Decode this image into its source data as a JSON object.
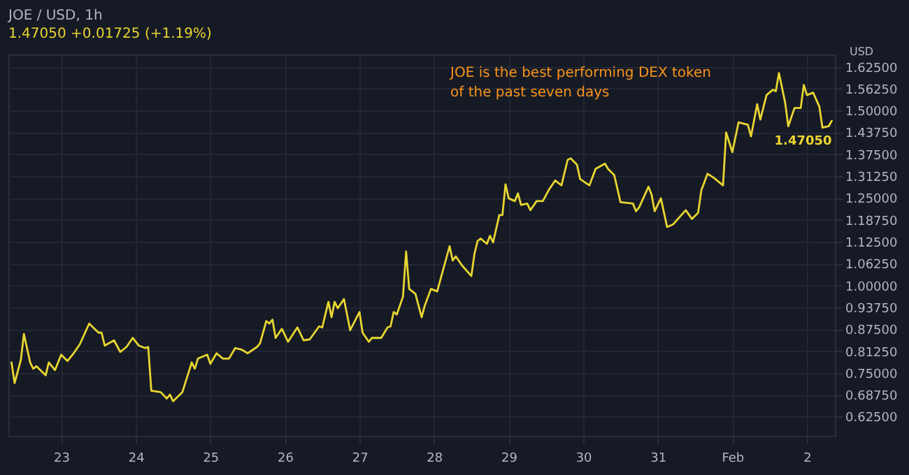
{
  "chart_data": {
    "type": "line",
    "title": "JOE / USD, 1h",
    "subtitle": "1.47050  +0.01725 (+1.19%)",
    "ylabel": "USD",
    "annotations": [
      "JOE is the best performing DEX token\nof the past seven days",
      {
        "text": "1.47050",
        "x": "--02-02T08:00",
        "y": 1.4705
      }
    ],
    "x": [
      "--01-22T08:00",
      "--01-22T09:00",
      "--01-22T11:00",
      "--01-22T12:00",
      "--01-22T14:00",
      "--01-22T15:00",
      "--01-22T16:00",
      "--01-22T19:00",
      "--01-22T20:00",
      "--01-22T22:00",
      "--01-23T00:00",
      "--01-23T02:00",
      "--01-23T04:00",
      "--01-23T06:00",
      "--01-23T09:00",
      "--01-23T12:00",
      "--01-23T13:00",
      "--01-23T14:00",
      "--01-23T17:00",
      "--01-23T19:00",
      "--01-23T21:00",
      "--01-23T23:00",
      "--01-24T01:00",
      "--01-24T03:00",
      "--01-24T04:00",
      "--01-24T05:00",
      "--01-24T08:00",
      "--01-24T10:00",
      "--01-24T11:00",
      "--01-24T12:00",
      "--01-24T15:00",
      "--01-24T18:00",
      "--01-24T19:00",
      "--01-24T20:00",
      "--01-24T23:00",
      "--01-25T00:00",
      "--01-25T02:00",
      "--01-25T04:00",
      "--01-25T06:00",
      "--01-25T08:00",
      "--01-25T10:00",
      "--01-25T12:00",
      "--01-25T15:00",
      "--01-25T16:00",
      "--01-25T18:00",
      "--01-25T19:00",
      "--01-25T20:00",
      "--01-25T21:00",
      "--01-25T23:00",
      "--01-26T01:00",
      "--01-26T04:00",
      "--01-26T06:00",
      "--01-26T08:00",
      "--01-26T11:00",
      "--01-26T12:00",
      "--01-26T14:00",
      "--01-26T15:00",
      "--01-26T16:00",
      "--01-26T17:00",
      "--01-26T19:00",
      "--01-26T21:00",
      "--01-27T00:00",
      "--01-27T01:00",
      "--01-27T03:00",
      "--01-27T04:00",
      "--01-27T07:00",
      "--01-27T09:00",
      "--01-27T10:00",
      "--01-27T11:00",
      "--01-27T12:00",
      "--01-27T14:00",
      "--01-27T15:00",
      "--01-27T16:00",
      "--01-27T18:00",
      "--01-27T20:00",
      "--01-27T21:00",
      "--01-27T23:00",
      "--01-28T01:00",
      "--01-28T05:00",
      "--01-28T06:00",
      "--01-28T07:00",
      "--01-28T09:00",
      "--01-28T12:00",
      "--01-28T13:00",
      "--01-28T14:00",
      "--01-28T15:00",
      "--01-28T17:00",
      "--01-28T18:00",
      "--01-28T19:00",
      "--01-28T21:00",
      "--01-28T22:00",
      "--01-28T23:00",
      "--01-29T00:00",
      "--01-29T02:00",
      "--01-29T03:00",
      "--01-29T04:00",
      "--01-29T06:00",
      "--01-29T07:00",
      "--01-29T09:00",
      "--01-29T11:00",
      "--01-29T13:00",
      "--01-29T15:00",
      "--01-29T17:00",
      "--01-29T19:00",
      "--01-29T20:00",
      "--01-29T22:00",
      "--01-29T23:00",
      "--01-30T02:00",
      "--01-30T04:00",
      "--01-30T07:00",
      "--01-30T08:00",
      "--01-30T10:00",
      "--01-30T12:00",
      "--01-30T16:00",
      "--01-30T17:00",
      "--01-30T18:00",
      "--01-30T21:00",
      "--01-30T22:00",
      "--01-30T23:00",
      "--01-31T01:00",
      "--01-31T03:00",
      "--01-31T05:00",
      "--01-31T09:00",
      "--01-31T11:00",
      "--01-31T13:00",
      "--01-31T14:00",
      "--01-31T16:00",
      "--01-31T18:00",
      "--01-31T21:00",
      "--01-31T22:00",
      "--02-01T00:00",
      "--02-01T02:00",
      "--02-01T05:00",
      "--02-01T06:00",
      "--02-01T08:00",
      "--02-01T09:00",
      "--02-01T11:00",
      "--02-01T13:00",
      "--02-01T14:00",
      "--02-01T15:00",
      "--02-01T17:00",
      "--02-01T18:00",
      "--02-01T20:00",
      "--02-01T22:00",
      "--02-01T23:00",
      "--02-02T00:00",
      "--02-02T02:00",
      "--02-02T04:00",
      "--02-02T05:00",
      "--02-02T07:00",
      "--02-02T08:00"
    ],
    "series": [
      {
        "color": "#e8d531",
        "values": [
          0.78,
          0.721,
          0.787,
          0.861,
          0.78,
          0.762,
          0.769,
          0.743,
          0.78,
          0.758,
          0.802,
          0.784,
          0.806,
          0.832,
          0.891,
          0.865,
          0.865,
          0.828,
          0.843,
          0.81,
          0.824,
          0.85,
          0.828,
          0.821,
          0.824,
          0.699,
          0.695,
          0.677,
          0.688,
          0.669,
          0.695,
          0.78,
          0.762,
          0.791,
          0.802,
          0.776,
          0.806,
          0.791,
          0.791,
          0.821,
          0.817,
          0.806,
          0.824,
          0.835,
          0.898,
          0.891,
          0.902,
          0.85,
          0.876,
          0.839,
          0.88,
          0.843,
          0.846,
          0.883,
          0.88,
          0.953,
          0.909,
          0.953,
          0.935,
          0.961,
          0.872,
          0.924,
          0.865,
          0.839,
          0.85,
          0.85,
          0.88,
          0.883,
          0.924,
          0.917,
          0.968,
          1.097,
          0.99,
          0.976,
          0.909,
          0.942,
          0.99,
          0.983,
          1.112,
          1.071,
          1.083,
          1.057,
          1.027,
          1.09,
          1.127,
          1.134,
          1.119,
          1.142,
          1.123,
          1.201,
          1.201,
          1.289,
          1.249,
          1.241,
          1.263,
          1.23,
          1.234,
          1.215,
          1.241,
          1.241,
          1.274,
          1.3,
          1.286,
          1.359,
          1.363,
          1.345,
          1.304,
          1.286,
          1.333,
          1.348,
          1.333,
          1.315,
          1.238,
          1.234,
          1.212,
          1.223,
          1.282,
          1.26,
          1.212,
          1.249,
          1.167,
          1.175,
          1.215,
          1.19,
          1.208,
          1.271,
          1.319,
          1.308,
          1.286,
          1.437,
          1.381,
          1.466,
          1.459,
          1.426,
          1.518,
          1.474,
          1.544,
          1.559,
          1.555,
          1.607,
          1.522,
          1.455,
          1.507,
          1.507,
          1.573,
          1.544,
          1.551,
          1.511,
          1.451,
          1.455,
          1.4705
        ]
      }
    ],
    "xlim": [
      "--01-22T07:00",
      "--02-02T09:00"
    ],
    "xticks": [
      {
        "value": "--01-23",
        "label": "23"
      },
      {
        "value": "--01-24",
        "label": "24"
      },
      {
        "value": "--01-25",
        "label": "25"
      },
      {
        "value": "--01-26",
        "label": "26"
      },
      {
        "value": "--01-27",
        "label": "27"
      },
      {
        "value": "--01-28",
        "label": "28"
      },
      {
        "value": "--01-29",
        "label": "29"
      },
      {
        "value": "--01-30",
        "label": "30"
      },
      {
        "value": "--01-31",
        "label": "31"
      },
      {
        "value": "--02-01",
        "label": "Feb"
      },
      {
        "value": "--02-02",
        "label": "2"
      }
    ],
    "ylim": [
      0.57,
      1.66
    ],
    "yticks": [
      {
        "value": 0.625,
        "label": "0.62500"
      },
      {
        "value": 0.6875,
        "label": "0.68750"
      },
      {
        "value": 0.75,
        "label": "0.75000"
      },
      {
        "value": 0.8125,
        "label": "0.81250"
      },
      {
        "value": 0.875,
        "label": "0.87500"
      },
      {
        "value": 0.9375,
        "label": "0.93750"
      },
      {
        "value": 1.0,
        "label": "1.00000"
      },
      {
        "value": 1.0625,
        "label": "1.06250"
      },
      {
        "value": 1.125,
        "label": "1.12500"
      },
      {
        "value": 1.1875,
        "label": "1.18750"
      },
      {
        "value": 1.25,
        "label": "1.25000"
      },
      {
        "value": 1.3125,
        "label": "1.31250"
      },
      {
        "value": 1.375,
        "label": "1.37500"
      },
      {
        "value": 1.4375,
        "label": "1.43750"
      },
      {
        "value": 1.5,
        "label": "1.50000"
      },
      {
        "value": 1.5625,
        "label": "1.56250"
      },
      {
        "value": 1.625,
        "label": "1.62500"
      }
    ],
    "grid": true,
    "marker": "none",
    "line_style": "solid"
  }
}
